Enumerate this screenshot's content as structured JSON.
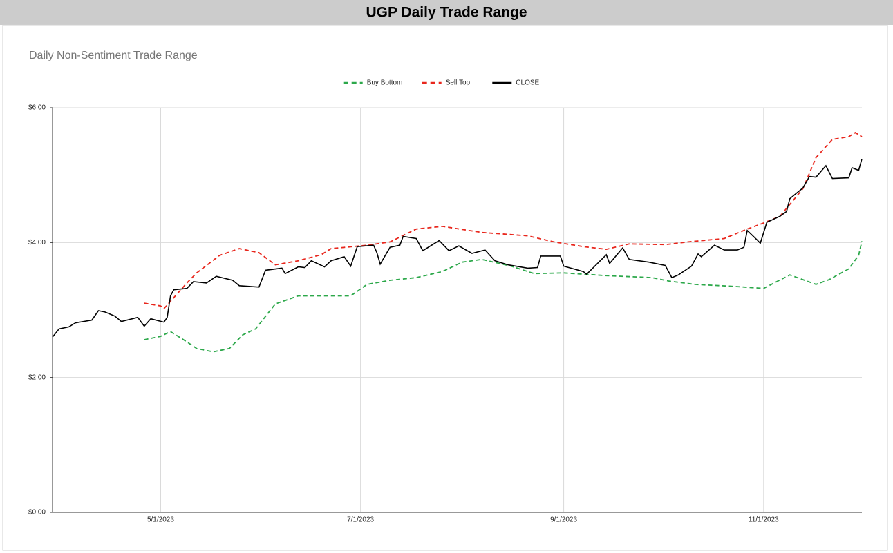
{
  "sheet_title": "UGP Daily Trade Range",
  "chart_data": {
    "type": "line",
    "title": "Daily Non-Sentiment Trade Range",
    "legend": "top",
    "grid": true,
    "xlim": [
      "2023-03-29",
      "2023-12-01"
    ],
    "xticks": [
      {
        "value": "2023-05-01",
        "label": "5/1/2023"
      },
      {
        "value": "2023-07-01",
        "label": "7/1/2023"
      },
      {
        "value": "2023-09-01",
        "label": "9/1/2023"
      },
      {
        "value": "2023-11-01",
        "label": "11/1/2023"
      }
    ],
    "ylim": [
      0,
      6
    ],
    "yticks": [
      {
        "value": 0,
        "label": "$0.00"
      },
      {
        "value": 2,
        "label": "$2.00"
      },
      {
        "value": 4,
        "label": "$4.00"
      },
      {
        "value": 6,
        "label": "$6.00"
      }
    ],
    "series": [
      {
        "name": "Buy Bottom",
        "color": "#2ca84a",
        "dashed": true,
        "x": [
          "2023-04-26",
          "2023-05-01",
          "2023-05-04",
          "2023-05-08",
          "2023-05-12",
          "2023-05-17",
          "2023-05-22",
          "2023-05-26",
          "2023-05-30",
          "2023-06-05",
          "2023-06-12",
          "2023-06-20",
          "2023-06-28",
          "2023-07-03",
          "2023-07-10",
          "2023-07-18",
          "2023-07-26",
          "2023-08-01",
          "2023-08-07",
          "2023-08-16",
          "2023-08-23",
          "2023-09-01",
          "2023-09-14",
          "2023-09-28",
          "2023-10-03",
          "2023-10-11",
          "2023-10-23",
          "2023-11-01",
          "2023-11-09",
          "2023-11-17",
          "2023-11-21",
          "2023-11-27",
          "2023-11-30",
          "2023-12-01"
        ],
        "values": [
          2.56,
          2.61,
          2.68,
          2.56,
          2.43,
          2.38,
          2.43,
          2.63,
          2.72,
          3.09,
          3.21,
          3.21,
          3.21,
          3.38,
          3.44,
          3.48,
          3.57,
          3.71,
          3.75,
          3.65,
          3.54,
          3.55,
          3.51,
          3.48,
          3.43,
          3.38,
          3.35,
          3.32,
          3.52,
          3.38,
          3.45,
          3.61,
          3.81,
          4.02
        ]
      },
      {
        "name": "Sell Top",
        "color": "#e8261c",
        "dashed": true,
        "x": [
          "2023-04-26",
          "2023-05-01",
          "2023-05-02",
          "2023-05-09",
          "2023-05-12",
          "2023-05-19",
          "2023-05-25",
          "2023-05-31",
          "2023-06-05",
          "2023-06-12",
          "2023-06-19",
          "2023-06-22",
          "2023-07-03",
          "2023-07-10",
          "2023-07-18",
          "2023-07-26",
          "2023-08-07",
          "2023-08-21",
          "2023-08-29",
          "2023-09-07",
          "2023-09-14",
          "2023-09-21",
          "2023-10-02",
          "2023-10-09",
          "2023-10-20",
          "2023-10-27",
          "2023-11-01",
          "2023-11-06",
          "2023-11-13",
          "2023-11-17",
          "2023-11-22",
          "2023-11-27",
          "2023-11-29",
          "2023-12-01"
        ],
        "values": [
          3.1,
          3.06,
          3.02,
          3.4,
          3.55,
          3.81,
          3.91,
          3.85,
          3.67,
          3.73,
          3.82,
          3.91,
          3.96,
          4.01,
          4.2,
          4.24,
          4.15,
          4.1,
          4.01,
          3.94,
          3.9,
          3.98,
          3.97,
          4.01,
          4.06,
          4.2,
          4.29,
          4.39,
          4.8,
          5.26,
          5.53,
          5.57,
          5.63,
          5.57
        ]
      },
      {
        "name": "CLOSE",
        "color": "#000000",
        "dashed": false,
        "x": [
          "2023-03-29",
          "2023-03-31",
          "2023-04-03",
          "2023-04-05",
          "2023-04-10",
          "2023-04-12",
          "2023-04-14",
          "2023-04-17",
          "2023-04-19",
          "2023-04-24",
          "2023-04-26",
          "2023-04-28",
          "2023-05-02",
          "2023-05-03",
          "2023-05-04",
          "2023-05-05",
          "2023-05-09",
          "2023-05-11",
          "2023-05-15",
          "2023-05-18",
          "2023-05-23",
          "2023-05-25",
          "2023-05-31",
          "2023-06-02",
          "2023-06-07",
          "2023-06-08",
          "2023-06-12",
          "2023-06-14",
          "2023-06-16",
          "2023-06-20",
          "2023-06-22",
          "2023-06-26",
          "2023-06-28",
          "2023-06-30",
          "2023-07-05",
          "2023-07-06",
          "2023-07-07",
          "2023-07-10",
          "2023-07-13",
          "2023-07-14",
          "2023-07-18",
          "2023-07-20",
          "2023-07-25",
          "2023-07-28",
          "2023-07-31",
          "2023-08-04",
          "2023-08-08",
          "2023-08-11",
          "2023-08-15",
          "2023-08-21",
          "2023-08-24",
          "2023-08-25",
          "2023-08-31",
          "2023-09-01",
          "2023-09-07",
          "2023-09-08",
          "2023-09-14",
          "2023-09-15",
          "2023-09-19",
          "2023-09-21",
          "2023-09-27",
          "2023-10-02",
          "2023-10-04",
          "2023-10-06",
          "2023-10-10",
          "2023-10-12",
          "2023-10-13",
          "2023-10-17",
          "2023-10-20",
          "2023-10-24",
          "2023-10-26",
          "2023-10-27",
          "2023-10-30",
          "2023-10-31",
          "2023-11-02",
          "2023-11-06",
          "2023-11-08",
          "2023-11-09",
          "2023-11-13",
          "2023-11-15",
          "2023-11-17",
          "2023-11-20",
          "2023-11-22",
          "2023-11-27",
          "2023-11-28",
          "2023-11-30",
          "2023-12-01"
        ],
        "values": [
          2.6,
          2.72,
          2.75,
          2.81,
          2.85,
          2.99,
          2.97,
          2.91,
          2.83,
          2.89,
          2.76,
          2.87,
          2.82,
          2.89,
          3.21,
          3.3,
          3.32,
          3.42,
          3.4,
          3.5,
          3.44,
          3.36,
          3.34,
          3.59,
          3.62,
          3.54,
          3.64,
          3.63,
          3.73,
          3.64,
          3.73,
          3.79,
          3.65,
          3.94,
          3.96,
          3.85,
          3.68,
          3.93,
          3.96,
          4.09,
          4.06,
          3.88,
          4.03,
          3.88,
          3.95,
          3.84,
          3.89,
          3.73,
          3.67,
          3.62,
          3.63,
          3.8,
          3.8,
          3.65,
          3.57,
          3.53,
          3.82,
          3.69,
          3.92,
          3.75,
          3.71,
          3.66,
          3.48,
          3.52,
          3.65,
          3.83,
          3.79,
          3.96,
          3.89,
          3.89,
          3.93,
          4.18,
          4.04,
          3.99,
          4.3,
          4.39,
          4.46,
          4.65,
          4.81,
          4.98,
          4.97,
          5.14,
          4.95,
          4.96,
          5.11,
          5.07,
          5.24
        ]
      }
    ]
  }
}
